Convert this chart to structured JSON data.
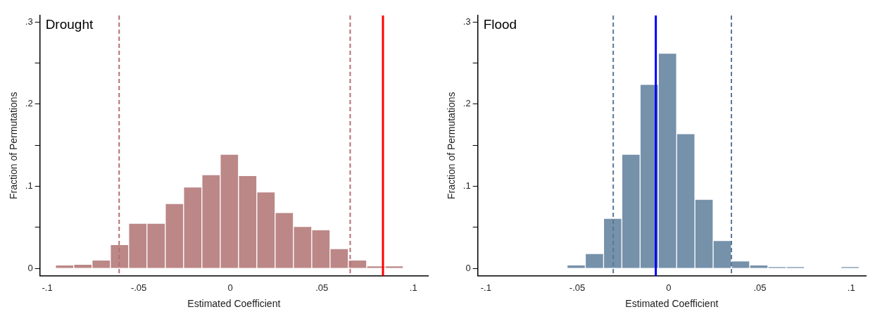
{
  "chart_data": [
    {
      "type": "histogram",
      "title": "Drought",
      "xlabel": "Estimated Coefficient",
      "ylabel": "Fraction of Permutations",
      "color": "#bc8787",
      "bins": [
        -0.0955,
        -0.0855,
        -0.0755,
        -0.0655,
        -0.0555,
        -0.0455,
        -0.0355,
        -0.0255,
        -0.0155,
        -0.0055,
        0.0045,
        0.0145,
        0.0245,
        0.0345,
        0.0445,
        0.0545,
        0.0645,
        0.0745,
        0.0845,
        0.0945
      ],
      "values": [
        0.004,
        0.005,
        0.01,
        0.029,
        0.055,
        0.055,
        0.079,
        0.099,
        0.114,
        0.139,
        0.113,
        0.093,
        0.068,
        0.051,
        0.047,
        0.024,
        0.01,
        0.003,
        0.003
      ],
      "xlim": [
        -0.104,
        0.108
      ],
      "ylim": [
        -0.009,
        0.308
      ],
      "xticks": [
        {
          "value": -0.1,
          "label": "-.1"
        },
        {
          "value": -0.05,
          "label": "-.05"
        },
        0,
        {
          "value": 0.05,
          "label": ".05"
        },
        {
          "value": 0.1,
          "label": ".1"
        }
      ],
      "yticks": [
        0,
        {
          "value": 0.05,
          "label": null
        },
        {
          "value": 0.1,
          "label": ".1"
        },
        {
          "value": 0.15,
          "label": null
        },
        {
          "value": 0.2,
          "label": ".2"
        },
        {
          "value": 0.25,
          "label": null
        },
        {
          "value": 0.3,
          "label": ".3"
        }
      ],
      "ref_lines": [
        {
          "axis": "x",
          "value": -0.0607,
          "color": "#b46f74",
          "line_style": "dashed"
        },
        {
          "axis": "x",
          "value": 0.0655,
          "color": "#b46f74",
          "line_style": "dashed"
        },
        {
          "axis": "x",
          "value": 0.0834,
          "color": "#ff0000",
          "line_style": "solid"
        }
      ],
      "grid": false,
      "legend": false
    },
    {
      "type": "histogram",
      "title": "Flood",
      "xlabel": "Estimated Coefficient",
      "ylabel": "Fraction of Permutations",
      "color": "#7691aa",
      "bins": [
        -0.0556,
        -0.0456,
        -0.0356,
        -0.0256,
        -0.0156,
        -0.0056,
        0.0044,
        0.0144,
        0.0244,
        0.0344,
        0.0444,
        0.0544,
        0.0644,
        0.0744,
        0.0844,
        0.0944,
        0.1044
      ],
      "values": [
        0.004,
        0.018,
        0.061,
        0.139,
        0.224,
        0.262,
        0.164,
        0.084,
        0.034,
        0.009,
        0.004,
        0.002,
        0.002,
        0,
        0,
        0.002
      ],
      "xlim": [
        -0.1045,
        0.108
      ],
      "ylim": [
        -0.009,
        0.308
      ],
      "xticks": [
        {
          "value": -0.1,
          "label": "-.1"
        },
        {
          "value": -0.05,
          "label": "-.05"
        },
        0,
        {
          "value": 0.05,
          "label": ".05"
        },
        {
          "value": 0.1,
          "label": ".1"
        }
      ],
      "yticks": [
        0,
        {
          "value": 0.05,
          "label": null
        },
        {
          "value": 0.1,
          "label": ".1"
        },
        {
          "value": 0.15,
          "label": null
        },
        {
          "value": 0.2,
          "label": ".2"
        },
        {
          "value": 0.25,
          "label": null
        },
        {
          "value": 0.3,
          "label": ".3"
        }
      ],
      "ref_lines": [
        {
          "axis": "x",
          "value": -0.0303,
          "color": "#5a7894",
          "line_style": "dashed"
        },
        {
          "axis": "x",
          "value": 0.0344,
          "color": "#5a7894",
          "line_style": "dashed"
        },
        {
          "axis": "x",
          "value": -0.007,
          "color": "#0000ff",
          "line_style": "solid"
        }
      ],
      "grid": false,
      "legend": false
    }
  ]
}
